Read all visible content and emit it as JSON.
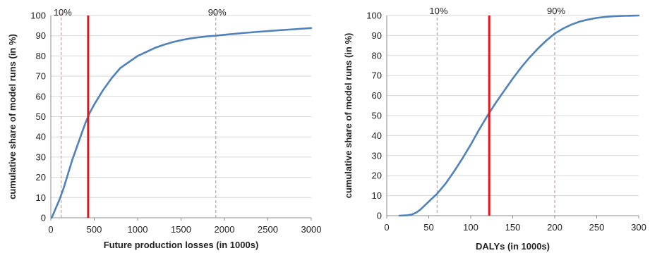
{
  "chart_data": [
    {
      "type": "line",
      "xlabel": "Future production losses (in 1000s)",
      "ylabel": "cumulative share of model runs (in %)",
      "xlim": [
        0,
        3000
      ],
      "ylim": [
        0,
        100
      ],
      "x_ticks": [
        "0",
        "500",
        "1000",
        "1500",
        "2000",
        "2500",
        "3000"
      ],
      "y_ticks": [
        "0",
        "10",
        "20",
        "30",
        "40",
        "50",
        "60",
        "70",
        "80",
        "90",
        "100"
      ],
      "grid": "horizontal",
      "series": [
        {
          "x": [
            10,
            30,
            60,
            100,
            150,
            200,
            250,
            300,
            350,
            400,
            450,
            500,
            600,
            700,
            800,
            900,
            1000,
            1100,
            1200,
            1300,
            1400,
            1500,
            1600,
            1700,
            1800,
            1900,
            2000,
            2200,
            2400,
            2600,
            2800,
            3000
          ],
          "y": [
            0,
            2,
            5,
            9,
            15,
            22,
            29,
            35,
            41,
            47,
            52,
            56,
            63,
            69,
            74,
            77,
            80,
            82,
            84,
            85.5,
            86.8,
            87.8,
            88.6,
            89.2,
            89.7,
            90,
            90.5,
            91.3,
            92,
            92.6,
            93.2,
            93.8
          ]
        }
      ],
      "reference_lines": [
        {
          "x": 120,
          "label": "10%",
          "style": "dashed"
        },
        {
          "x": 1900,
          "label": "90%",
          "style": "dashed"
        },
        {
          "x": 430,
          "label": "",
          "style": "solid-red"
        }
      ],
      "colors": {
        "series": "#4f81bd",
        "marker": "#e8151b",
        "dashed": "#c9a0a0",
        "grid": "#d9d9d9"
      }
    },
    {
      "type": "line",
      "xlabel": "DALYs (in 1000s)",
      "ylabel": "cumulative share of model runs (in %)",
      "xlim": [
        0,
        300
      ],
      "ylim": [
        0,
        100
      ],
      "x_ticks": [
        "0",
        "50",
        "100",
        "150",
        "200",
        "250",
        "300"
      ],
      "y_ticks": [
        "0",
        "10",
        "20",
        "30",
        "40",
        "50",
        "60",
        "70",
        "80",
        "90",
        "100"
      ],
      "grid": "horizontal",
      "series": [
        {
          "x": [
            15,
            25,
            30,
            35,
            40,
            45,
            50,
            55,
            60,
            65,
            70,
            75,
            80,
            90,
            100,
            110,
            120,
            130,
            140,
            150,
            160,
            170,
            180,
            190,
            200,
            210,
            220,
            230,
            240,
            250,
            260,
            270,
            280,
            290,
            300
          ],
          "y": [
            0,
            0.2,
            0.6,
            1.5,
            3,
            5,
            7,
            9,
            11,
            13.5,
            16,
            19,
            22,
            28.5,
            35.5,
            43,
            50,
            56.5,
            62.5,
            68.5,
            74,
            79,
            83.5,
            87.5,
            91,
            93.5,
            95.5,
            97,
            98,
            98.8,
            99.3,
            99.6,
            99.8,
            99.9,
            100
          ]
        }
      ],
      "reference_lines": [
        {
          "x": 60,
          "label": "10%",
          "style": "dashed"
        },
        {
          "x": 200,
          "label": "90%",
          "style": "dashed"
        },
        {
          "x": 122,
          "label": "",
          "style": "solid-red"
        }
      ],
      "colors": {
        "series": "#4f81bd",
        "marker": "#e8151b",
        "dashed": "#c9a0a0",
        "grid": "#d9d9d9"
      }
    }
  ]
}
